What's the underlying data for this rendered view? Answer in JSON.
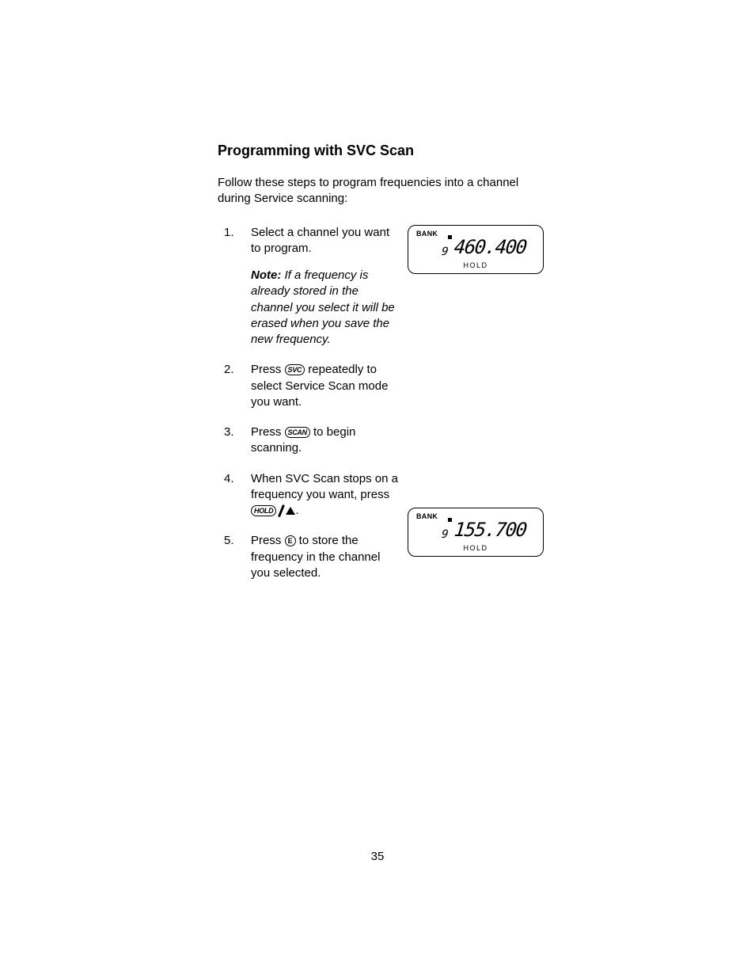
{
  "heading": "Programming with SVC Scan",
  "intro": "Follow these steps to program frequencies into a channel during Service scanning:",
  "steps": {
    "s1": {
      "text": "Select a channel you want to program.",
      "note_label": "Note:",
      "note_text": " If a frequency is already stored in the channel you select it will be erased when you save the new frequency."
    },
    "s2": {
      "pre": "Press ",
      "key": "SVC",
      "post": " repeatedly to select Service Scan mode you want."
    },
    "s3": {
      "pre": "Press ",
      "key": "SCAN",
      "post": " to begin scanning."
    },
    "s4": {
      "line1": "When SVC Scan stops on a frequency you want, press",
      "key": "HOLD",
      "post": "."
    },
    "s5": {
      "pre": "Press ",
      "key": "E",
      "post": " to store the frequency in the channel you selected."
    }
  },
  "displays": {
    "d1": {
      "bank_label": "BANK",
      "channel": "9",
      "frequency": "460.400",
      "hold_label": "HOLD"
    },
    "d2": {
      "bank_label": "BANK",
      "channel": "9",
      "frequency": "155.700",
      "hold_label": "HOLD"
    }
  },
  "page_number": "35",
  "colors": {
    "text": "#000000",
    "background": "#ffffff"
  }
}
